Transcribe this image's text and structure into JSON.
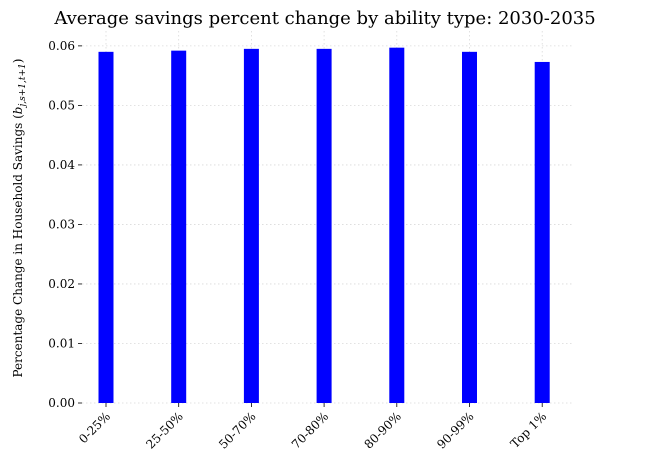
{
  "chart_data": {
    "type": "bar",
    "title": "Average savings percent change by ability type: 2030-2035",
    "xlabel": "",
    "ylabel": "Percentage Change in Household Savings (b_{j,s+1,t+1})",
    "ylabel_parts": {
      "main": "Percentage Change in Household Savings (",
      "var": "b",
      "sub": "j,s+1,t+1",
      "close": ")"
    },
    "categories": [
      "0-25%",
      "25-50%",
      "50-70%",
      "70-80%",
      "80-90%",
      "90-99%",
      "Top 1%"
    ],
    "values": [
      0.059,
      0.0592,
      0.0595,
      0.0595,
      0.0597,
      0.059,
      0.0573
    ],
    "ylim": [
      0,
      0.0625
    ],
    "yticks": [
      0.0,
      0.01,
      0.02,
      0.03,
      0.04,
      0.05,
      0.06
    ],
    "ytick_labels": [
      "0.00",
      "0.01",
      "0.02",
      "0.03",
      "0.04",
      "0.05",
      "0.06"
    ],
    "bar_color": "#0000ff",
    "grid": true,
    "legend": "none"
  }
}
